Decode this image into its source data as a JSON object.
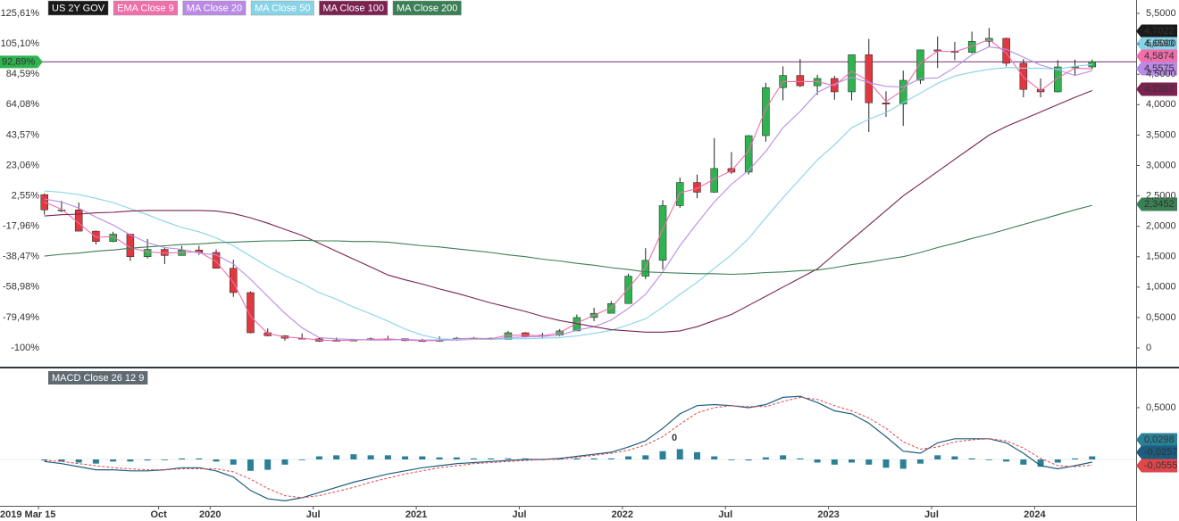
{
  "chart_data": [
    {
      "type": "candlestick",
      "name": "US 2Y GOV",
      "color": "#1a1a1a",
      "up_color": "#2fb34f",
      "down_color": "#e0383e",
      "x": [
        "2019-03",
        "2019-04",
        "2019-05",
        "2019-06",
        "2019-07",
        "2019-08",
        "2019-09",
        "2019-10",
        "2019-11",
        "2019-12",
        "2020-01",
        "2020-02",
        "2020-03",
        "2020-04",
        "2020-05",
        "2020-06",
        "2020-07",
        "2020-08",
        "2020-09",
        "2020-10",
        "2020-11",
        "2020-12",
        "2021-01",
        "2021-02",
        "2021-03",
        "2021-04",
        "2021-05",
        "2021-06",
        "2021-07",
        "2021-08",
        "2021-09",
        "2021-10",
        "2021-11",
        "2021-12",
        "2022-01",
        "2022-02",
        "2022-03",
        "2022-04",
        "2022-05",
        "2022-06",
        "2022-07",
        "2022-08",
        "2022-09",
        "2022-10",
        "2022-11",
        "2022-12",
        "2023-01",
        "2023-02",
        "2023-03",
        "2023-04",
        "2023-05",
        "2023-06",
        "2023-07",
        "2023-08",
        "2023-09",
        "2023-10",
        "2023-11",
        "2023-12",
        "2024-01",
        "2024-02",
        "2024-03",
        "2024-04"
      ],
      "open": [
        2.52,
        2.27,
        2.27,
        1.92,
        1.75,
        1.87,
        1.5,
        1.62,
        1.52,
        1.61,
        1.57,
        1.31,
        0.91,
        0.25,
        0.2,
        0.16,
        0.15,
        0.11,
        0.13,
        0.13,
        0.15,
        0.15,
        0.12,
        0.11,
        0.13,
        0.16,
        0.16,
        0.14,
        0.25,
        0.19,
        0.21,
        0.28,
        0.5,
        0.57,
        0.73,
        1.18,
        1.44,
        2.34,
        2.72,
        2.56,
        2.95,
        2.89,
        3.49,
        4.28,
        4.48,
        4.31,
        4.43,
        4.21,
        4.82,
        4.03,
        4.01,
        4.4,
        4.9,
        4.88,
        4.86,
        5.04,
        5.09,
        4.68,
        4.25,
        4.21,
        4.62,
        4.62
      ],
      "high": [
        2.54,
        2.42,
        2.39,
        1.93,
        1.91,
        1.88,
        1.79,
        1.65,
        1.68,
        1.68,
        1.62,
        1.45,
        0.93,
        0.32,
        0.21,
        0.24,
        0.17,
        0.17,
        0.15,
        0.17,
        0.2,
        0.15,
        0.15,
        0.19,
        0.18,
        0.18,
        0.17,
        0.28,
        0.26,
        0.25,
        0.31,
        0.55,
        0.66,
        0.77,
        1.22,
        1.64,
        2.43,
        2.8,
        2.85,
        3.45,
        3.22,
        3.5,
        4.36,
        4.63,
        4.75,
        4.49,
        4.47,
        4.82,
        5.08,
        4.22,
        4.56,
        4.9,
        5.12,
        5.03,
        5.2,
        5.26,
        5.1,
        4.75,
        4.43,
        4.73,
        4.74,
        4.74
      ],
      "low": [
        2.19,
        2.23,
        1.92,
        1.7,
        1.74,
        1.43,
        1.47,
        1.38,
        1.52,
        1.53,
        1.31,
        0.84,
        0.24,
        0.19,
        0.12,
        0.15,
        0.1,
        0.11,
        0.12,
        0.12,
        0.14,
        0.11,
        0.11,
        0.1,
        0.12,
        0.15,
        0.13,
        0.14,
        0.17,
        0.16,
        0.19,
        0.28,
        0.44,
        0.57,
        0.73,
        1.13,
        1.29,
        2.3,
        2.46,
        2.55,
        2.86,
        2.85,
        3.39,
        4.07,
        4.29,
        4.16,
        4.08,
        4.07,
        3.55,
        3.8,
        3.65,
        4.34,
        4.6,
        4.73,
        4.84,
        4.95,
        4.63,
        4.12,
        4.12,
        4.2,
        4.48,
        4.58
      ],
      "close": [
        2.27,
        2.27,
        1.92,
        1.75,
        1.87,
        1.5,
        1.62,
        1.52,
        1.61,
        1.57,
        1.31,
        0.91,
        0.25,
        0.2,
        0.16,
        0.15,
        0.11,
        0.13,
        0.13,
        0.15,
        0.15,
        0.12,
        0.11,
        0.13,
        0.16,
        0.16,
        0.14,
        0.25,
        0.19,
        0.21,
        0.28,
        0.5,
        0.57,
        0.73,
        1.18,
        1.44,
        2.34,
        2.72,
        2.56,
        2.95,
        2.89,
        3.49,
        4.28,
        4.48,
        4.31,
        4.43,
        4.21,
        4.82,
        4.03,
        4.01,
        4.4,
        4.9,
        4.88,
        4.86,
        5.04,
        5.09,
        4.68,
        4.25,
        4.21,
        4.62,
        4.62,
        4.7022
      ],
      "last_label": "4,7022",
      "last_change": {
        "value": 92.89,
        "label": "92,89%"
      },
      "overlays": [
        {
          "name": "EMA Close 9",
          "color": "#f06eaa",
          "last_label": "4,5874",
          "values": [
            2.4,
            2.28,
            2.05,
            1.82,
            1.83,
            1.65,
            1.58,
            1.56,
            1.57,
            1.58,
            1.42,
            1.08,
            0.52,
            0.24,
            0.18,
            0.16,
            0.13,
            0.12,
            0.13,
            0.14,
            0.15,
            0.13,
            0.12,
            0.12,
            0.15,
            0.16,
            0.15,
            0.21,
            0.21,
            0.2,
            0.25,
            0.41,
            0.54,
            0.66,
            0.98,
            1.32,
            1.95,
            2.55,
            2.62,
            2.78,
            2.91,
            3.24,
            3.93,
            4.38,
            4.38,
            4.38,
            4.31,
            4.55,
            4.38,
            4.05,
            4.24,
            4.68,
            4.88,
            4.87,
            4.96,
            5.07,
            4.85,
            4.45,
            4.23,
            4.44,
            4.6,
            4.5874
          ]
        },
        {
          "name": "MA Close 20",
          "color": "#b98ae6",
          "last_label": "4,5575",
          "values": [
            2.45,
            2.4,
            2.3,
            2.15,
            2.02,
            1.86,
            1.73,
            1.65,
            1.62,
            1.56,
            1.53,
            1.38,
            1.13,
            0.85,
            0.57,
            0.33,
            0.17,
            0.15,
            0.14,
            0.13,
            0.13,
            0.14,
            0.13,
            0.13,
            0.13,
            0.14,
            0.14,
            0.17,
            0.18,
            0.19,
            0.21,
            0.29,
            0.35,
            0.46,
            0.65,
            0.88,
            1.25,
            1.68,
            2.05,
            2.4,
            2.69,
            2.92,
            3.23,
            3.62,
            3.89,
            4.2,
            4.34,
            4.45,
            4.36,
            4.3,
            4.29,
            4.43,
            4.44,
            4.61,
            4.82,
            4.95,
            4.91,
            4.78,
            4.65,
            4.57,
            4.48,
            4.5575
          ]
        },
        {
          "name": "MA Close 50",
          "color": "#87d3e8",
          "last_label": "4,6593",
          "values": [
            2.58,
            2.56,
            2.52,
            2.46,
            2.39,
            2.29,
            2.19,
            2.08,
            1.98,
            1.91,
            1.81,
            1.68,
            1.51,
            1.34,
            1.19,
            1.06,
            0.91,
            0.8,
            0.67,
            0.56,
            0.44,
            0.31,
            0.21,
            0.15,
            0.14,
            0.14,
            0.14,
            0.15,
            0.15,
            0.16,
            0.17,
            0.2,
            0.24,
            0.29,
            0.38,
            0.48,
            0.67,
            0.88,
            1.08,
            1.31,
            1.53,
            1.8,
            2.14,
            2.47,
            2.78,
            3.09,
            3.34,
            3.62,
            3.76,
            3.87,
            4.03,
            4.19,
            4.35,
            4.47,
            4.53,
            4.58,
            4.61,
            4.6,
            4.6,
            4.58,
            4.63,
            4.6593
          ]
        },
        {
          "name": "MA Close 100",
          "color": "#7a2350",
          "last_label": "4,2307",
          "values": [
            2.17,
            2.19,
            2.2,
            2.22,
            2.23,
            2.25,
            2.26,
            2.26,
            2.26,
            2.26,
            2.25,
            2.21,
            2.14,
            2.05,
            1.95,
            1.85,
            1.72,
            1.59,
            1.46,
            1.33,
            1.2,
            1.12,
            1.05,
            0.97,
            0.9,
            0.82,
            0.74,
            0.67,
            0.6,
            0.52,
            0.45,
            0.4,
            0.35,
            0.3,
            0.28,
            0.26,
            0.26,
            0.28,
            0.35,
            0.45,
            0.55,
            0.7,
            0.85,
            1.0,
            1.15,
            1.3,
            1.54,
            1.78,
            2.02,
            2.26,
            2.5,
            2.7,
            2.9,
            3.1,
            3.3,
            3.5,
            3.64,
            3.76,
            3.88,
            4.0,
            4.12,
            4.2307
          ]
        },
        {
          "name": "MA Close 200",
          "color": "#3b7f55",
          "last_label": "2,3452",
          "values": [
            1.51,
            1.54,
            1.56,
            1.59,
            1.61,
            1.64,
            1.66,
            1.68,
            1.7,
            1.71,
            1.73,
            1.74,
            1.75,
            1.76,
            1.76,
            1.77,
            1.76,
            1.76,
            1.75,
            1.75,
            1.74,
            1.71,
            1.68,
            1.66,
            1.63,
            1.6,
            1.57,
            1.53,
            1.5,
            1.46,
            1.43,
            1.39,
            1.36,
            1.32,
            1.29,
            1.25,
            1.24,
            1.23,
            1.22,
            1.22,
            1.21,
            1.22,
            1.24,
            1.25,
            1.27,
            1.28,
            1.32,
            1.37,
            1.41,
            1.46,
            1.5,
            1.57,
            1.65,
            1.72,
            1.8,
            1.87,
            1.95,
            2.03,
            2.11,
            2.19,
            2.27,
            2.3452
          ]
        }
      ],
      "ylim": [
        -0.293,
        5.72
      ],
      "yticks": [
        0,
        {
          "value": 0.5,
          "label": "0,5000"
        },
        {
          "value": 1,
          "label": "1,0000"
        },
        {
          "value": 1.5,
          "label": "1,5000"
        },
        {
          "value": 2,
          "label": "2,0000"
        },
        {
          "value": 2.5,
          "label": "2,5000"
        },
        {
          "value": 3,
          "label": "3,0000"
        },
        {
          "value": 3.5,
          "label": "3,5000"
        },
        {
          "value": 4,
          "label": "4,0000"
        },
        {
          "value": 4.5,
          "label": "4,5000"
        },
        {
          "value": 5,
          "label": "5,0000"
        },
        {
          "value": 5.5,
          "label": "5,5000"
        }
      ],
      "y2lim": [
        -112.02,
        134.64
      ],
      "y2ticks": [
        {
          "value": 125.61,
          "label": "125,61%"
        },
        {
          "value": 105.1,
          "label": "105,10%"
        },
        {
          "value": 84.59,
          "label": "84,59%"
        },
        {
          "value": 64.08,
          "label": "64,08%"
        },
        {
          "value": 43.57,
          "label": "43,57%"
        },
        {
          "value": 23.06,
          "label": "23,06%"
        },
        {
          "value": 2.55,
          "label": "2,55%"
        },
        {
          "value": -17.96,
          "label": "-17,96%"
        },
        {
          "value": -38.47,
          "label": "-38,47%"
        },
        {
          "value": -58.98,
          "label": "-58,98%"
        },
        {
          "value": -79.49,
          "label": "-79,49%"
        },
        {
          "value": -100,
          "label": "-100%"
        }
      ],
      "xticks": [
        {
          "value": "2019-03",
          "label": "2019 Mar 15"
        },
        {
          "value": "2019-10",
          "label": "Oct"
        },
        {
          "value": "2020-01",
          "label": "2020"
        },
        {
          "value": "2020-07",
          "label": "Jul"
        },
        {
          "value": "2021-01",
          "label": "2021"
        },
        {
          "value": "2021-07",
          "label": "Jul"
        },
        {
          "value": "2022-01",
          "label": "2022"
        },
        {
          "value": "2022-07",
          "label": "Jul"
        },
        {
          "value": "2023-01",
          "label": "2023"
        },
        {
          "value": "2023-07",
          "label": "Jul"
        },
        {
          "value": "2024-01",
          "label": "2024"
        }
      ]
    },
    {
      "type": "macd",
      "title": "MACD Close 26 12 9",
      "annotation": "0",
      "histogram": {
        "color": "#2b8096",
        "last_label": "0,0298",
        "values": [
          -0.01,
          -0.02,
          -0.03,
          -0.04,
          -0.02,
          -0.02,
          -0.01,
          0.0,
          0.01,
          0.01,
          -0.02,
          -0.05,
          -0.11,
          -0.1,
          -0.05,
          0.0,
          0.03,
          0.04,
          0.05,
          0.04,
          0.04,
          0.03,
          0.03,
          0.02,
          0.02,
          0.01,
          0.01,
          0.01,
          0.01,
          0.0,
          0.01,
          0.01,
          0.01,
          0.01,
          0.03,
          0.04,
          0.08,
          0.1,
          0.07,
          0.03,
          0.0,
          -0.01,
          0.02,
          0.04,
          0.01,
          -0.03,
          -0.05,
          -0.03,
          -0.05,
          -0.08,
          -0.09,
          -0.04,
          0.04,
          0.03,
          0.01,
          0.0,
          -0.02,
          -0.05,
          -0.07,
          -0.03,
          0.01,
          0.0298
        ]
      },
      "macd": {
        "color": "#1d5d80",
        "last_label": "-0,0257",
        "values": [
          -0.02,
          -0.04,
          -0.07,
          -0.1,
          -0.1,
          -0.11,
          -0.11,
          -0.1,
          -0.08,
          -0.08,
          -0.11,
          -0.17,
          -0.3,
          -0.38,
          -0.4,
          -0.37,
          -0.32,
          -0.27,
          -0.22,
          -0.18,
          -0.14,
          -0.11,
          -0.08,
          -0.06,
          -0.04,
          -0.03,
          -0.02,
          -0.01,
          0.0,
          0.0,
          0.01,
          0.03,
          0.05,
          0.07,
          0.12,
          0.18,
          0.3,
          0.44,
          0.52,
          0.53,
          0.52,
          0.5,
          0.53,
          0.6,
          0.61,
          0.55,
          0.47,
          0.44,
          0.35,
          0.22,
          0.08,
          0.06,
          0.16,
          0.2,
          0.2,
          0.2,
          0.16,
          0.06,
          -0.06,
          -0.09,
          -0.06,
          -0.0257
        ]
      },
      "signal": {
        "color": "#e0474c",
        "last_label": "-0,0555",
        "values": [
          -0.01,
          -0.02,
          -0.04,
          -0.06,
          -0.08,
          -0.09,
          -0.1,
          -0.1,
          -0.09,
          -0.09,
          -0.09,
          -0.12,
          -0.19,
          -0.28,
          -0.35,
          -0.37,
          -0.35,
          -0.31,
          -0.27,
          -0.22,
          -0.18,
          -0.14,
          -0.11,
          -0.08,
          -0.06,
          -0.04,
          -0.03,
          -0.02,
          -0.01,
          0.0,
          0.0,
          0.02,
          0.04,
          0.06,
          0.09,
          0.14,
          0.22,
          0.34,
          0.45,
          0.5,
          0.52,
          0.51,
          0.51,
          0.56,
          0.6,
          0.58,
          0.52,
          0.47,
          0.4,
          0.3,
          0.17,
          0.1,
          0.12,
          0.17,
          0.19,
          0.2,
          0.18,
          0.11,
          0.01,
          -0.06,
          -0.07,
          -0.0555
        ]
      },
      "ylim": [
        -0.448,
        0.879
      ],
      "yticks": [
        {
          "value": 0.5,
          "label": "0,5000"
        }
      ]
    }
  ]
}
